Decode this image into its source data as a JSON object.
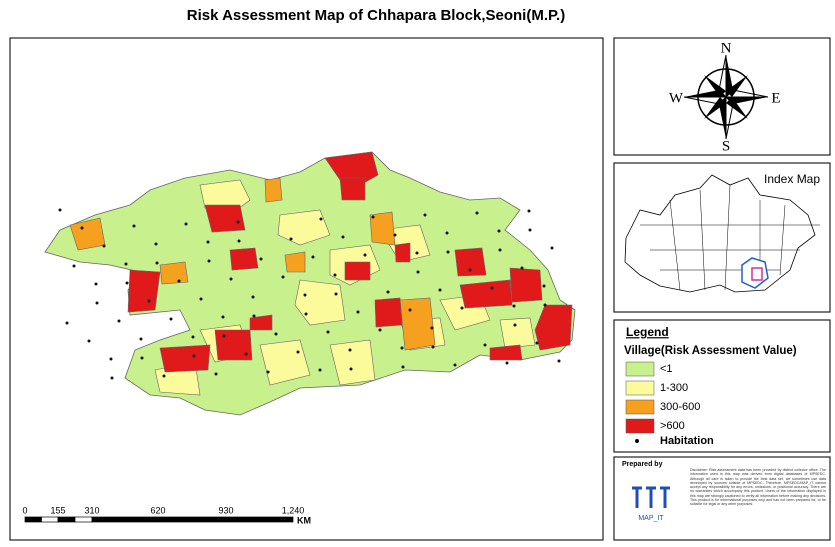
{
  "title": "Risk Assessment Map of Chhapara Block,Seoni(M.P.)",
  "compass": {
    "n": "N",
    "e": "E",
    "s": "S",
    "w": "W"
  },
  "index_map": {
    "title": "Index Map"
  },
  "legend": {
    "title": "Legend",
    "subtitle": "Village(Risk Assessment Value)",
    "items": [
      {
        "label": "<1",
        "color": "#c8f08c"
      },
      {
        "label": "1-300",
        "color": "#fcfb9c"
      },
      {
        "label": "300-600",
        "color": "#f5a01e"
      },
      {
        "label": ">600",
        "color": "#e0191b"
      }
    ],
    "habitation": "Habitation"
  },
  "scale_bar": {
    "labels": [
      "0",
      "155",
      "310",
      "620",
      "930",
      "1,240"
    ],
    "unit": "KM"
  },
  "credits": {
    "prepared_by": "Prepared by",
    "logo_text": "MAP_IT",
    "disclaimer": "Disclaimer: Risk assessment data has been provided by district collector office. The information used in this map was derived from digital databases of MPSEDC. Although all care is taken to provide the best data set, we sometimes use data developed by sources outside of MPSEDC. Therefore, MPSEDC/MAP_IT cannot accept any responsibility for any errors, omissions, or positional accuracy. There are no warranties which accompany this product. Users of the information displayed in this map are strongly cautioned to verify all information before making any decisions. This product is for informational purposes only and has not been prepared for, or be suitable for legal or any other purposes."
  }
}
